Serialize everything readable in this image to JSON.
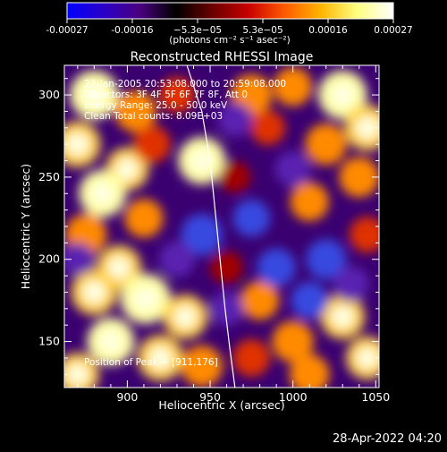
{
  "colorbar": {
    "ticks": [
      "-0.00027",
      "-0.00016",
      "−5.3e−05",
      "5.3e−05",
      "0.00016",
      "0.00027"
    ],
    "unit_label": "(photons cm⁻² s⁻¹ asec⁻²)",
    "stops": [
      "#0000ff",
      "#2a00c8",
      "#4a0080",
      "#000000",
      "#6a0000",
      "#c80000",
      "#ff5a00",
      "#ffb400",
      "#ffff80",
      "#ffffff"
    ]
  },
  "chart_data": {
    "type": "heatmap",
    "title": "Reconstructed RHESSI Image",
    "xlabel": "Heliocentric X (arcsec)",
    "ylabel": "Heliocentric Y (arcsec)",
    "xlim": [
      862,
      1052
    ],
    "ylim": [
      122,
      318
    ],
    "x_ticks": [
      900,
      950,
      1000,
      1050
    ],
    "y_ticks": [
      150,
      200,
      250,
      300
    ],
    "annotations": [
      "23-Jan-2005 20:53:08.000 to 20:59:08.000",
      "Detectors: 3F 4F 5F 6F 7F 8F, Att 0",
      "Energy Range: 25.0 - 50.0 keV",
      "Clean     Total counts: 8.09E+03"
    ],
    "peak_label": "Position of Peak = [911,176]",
    "peak": [
      911,
      176
    ],
    "limb_curve": [
      [
        936,
        318
      ],
      [
        945,
        290
      ],
      [
        950,
        260
      ],
      [
        953,
        230
      ],
      [
        956,
        200
      ],
      [
        959,
        170
      ],
      [
        962,
        145
      ],
      [
        965,
        122
      ]
    ],
    "blobs": [
      {
        "x": 880,
        "y": 300,
        "v": 0.95
      },
      {
        "x": 905,
        "y": 290,
        "v": 0.7
      },
      {
        "x": 870,
        "y": 270,
        "v": 0.85
      },
      {
        "x": 900,
        "y": 255,
        "v": 0.75
      },
      {
        "x": 885,
        "y": 240,
        "v": 0.9
      },
      {
        "x": 915,
        "y": 270,
        "v": 0.55
      },
      {
        "x": 875,
        "y": 215,
        "v": 0.7
      },
      {
        "x": 910,
        "y": 225,
        "v": 0.6
      },
      {
        "x": 895,
        "y": 195,
        "v": 0.8
      },
      {
        "x": 880,
        "y": 180,
        "v": 0.85
      },
      {
        "x": 911,
        "y": 176,
        "v": 1.0
      },
      {
        "x": 935,
        "y": 165,
        "v": 0.8
      },
      {
        "x": 890,
        "y": 150,
        "v": 0.9
      },
      {
        "x": 920,
        "y": 140,
        "v": 0.85
      },
      {
        "x": 945,
        "y": 135,
        "v": 0.7
      },
      {
        "x": 870,
        "y": 130,
        "v": 0.75
      },
      {
        "x": 945,
        "y": 260,
        "v": 0.9
      },
      {
        "x": 930,
        "y": 300,
        "v": 0.5
      },
      {
        "x": 975,
        "y": 300,
        "v": 0.7
      },
      {
        "x": 1000,
        "y": 305,
        "v": 0.6
      },
      {
        "x": 1030,
        "y": 300,
        "v": 0.95
      },
      {
        "x": 1045,
        "y": 280,
        "v": 0.85
      },
      {
        "x": 1020,
        "y": 270,
        "v": 0.7
      },
      {
        "x": 985,
        "y": 280,
        "v": 0.45
      },
      {
        "x": 1040,
        "y": 250,
        "v": 0.65
      },
      {
        "x": 1010,
        "y": 235,
        "v": 0.6
      },
      {
        "x": 1045,
        "y": 215,
        "v": 0.5
      },
      {
        "x": 980,
        "y": 175,
        "v": 0.6
      },
      {
        "x": 1000,
        "y": 150,
        "v": 0.7
      },
      {
        "x": 1030,
        "y": 165,
        "v": 0.8
      },
      {
        "x": 1045,
        "y": 140,
        "v": 0.75
      },
      {
        "x": 1010,
        "y": 130,
        "v": 0.65
      },
      {
        "x": 975,
        "y": 140,
        "v": 0.55
      },
      {
        "x": 960,
        "y": 195,
        "v": 0.4
      },
      {
        "x": 965,
        "y": 250,
        "v": 0.35
      },
      {
        "x": 945,
        "y": 215,
        "v": -0.7
      },
      {
        "x": 930,
        "y": 200,
        "v": -0.5
      },
      {
        "x": 975,
        "y": 225,
        "v": -0.55
      },
      {
        "x": 990,
        "y": 195,
        "v": -0.6
      },
      {
        "x": 1020,
        "y": 200,
        "v": -0.65
      },
      {
        "x": 1035,
        "y": 185,
        "v": -0.5
      },
      {
        "x": 960,
        "y": 170,
        "v": -0.45
      },
      {
        "x": 1000,
        "y": 255,
        "v": -0.5
      },
      {
        "x": 965,
        "y": 285,
        "v": -0.45
      },
      {
        "x": 870,
        "y": 200,
        "v": -0.4
      },
      {
        "x": 1010,
        "y": 175,
        "v": -0.55
      }
    ]
  },
  "footer": {
    "timestamp": "28-Apr-2022 04:20"
  }
}
